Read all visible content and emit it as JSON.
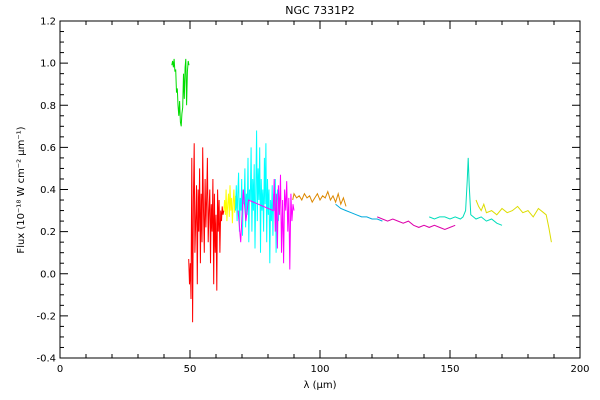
{
  "chart_data": {
    "type": "line",
    "title": "NGC 7331P2",
    "xlabel": "λ (μm)",
    "ylabel": "Flux (10⁻¹⁸ W cm⁻² μm⁻¹)",
    "xlim": [
      0,
      200
    ],
    "ylim": [
      -0.4,
      1.2
    ],
    "x_ticks": [
      0,
      50,
      100,
      150,
      200
    ],
    "y_ticks": [
      -0.4,
      -0.2,
      0.0,
      0.2,
      0.4,
      0.6,
      0.8,
      1.0,
      1.2
    ],
    "x_tick_labels": [
      "0",
      "50",
      "100",
      "150",
      "200"
    ],
    "y_tick_labels": [
      "-0.4",
      "-0.2",
      "0.0",
      "0.2",
      "0.4",
      "0.6",
      "0.8",
      "1.0",
      "1.2"
    ],
    "grid": false,
    "series": [
      {
        "color": "#00dd00",
        "x": [
          43.0,
          43.3,
          43.6,
          43.9,
          44.2,
          44.5,
          44.8,
          45.1,
          45.4,
          45.7,
          46.0,
          46.3,
          46.6,
          46.9,
          47.2,
          47.5,
          47.8,
          48.1,
          48.4,
          48.7,
          49.0,
          49.3,
          49.6
        ],
        "y": [
          0.99,
          1.01,
          0.98,
          1.02,
          0.96,
          0.97,
          0.86,
          0.88,
          0.8,
          0.75,
          0.82,
          0.72,
          0.7,
          0.76,
          0.79,
          0.95,
          0.83,
          0.98,
          1.02,
          0.8,
          0.96,
          1.01,
          0.99
        ]
      },
      {
        "color": "#ff0000",
        "x": [
          49.5,
          49.8,
          50.1,
          50.4,
          50.7,
          51.0,
          51.3,
          51.6,
          51.9,
          52.2,
          52.5,
          52.8,
          53.1,
          53.4,
          53.7,
          54.0,
          54.3,
          54.6,
          54.9,
          55.2,
          55.5,
          55.8,
          56.1,
          56.4,
          56.7,
          57.0,
          57.3,
          57.6,
          57.9,
          58.2,
          58.5,
          58.8,
          59.1,
          59.4,
          59.7,
          60.0,
          60.3,
          60.6,
          60.9,
          61.2,
          61.5,
          61.8,
          62.1,
          62.4,
          62.7,
          63.0
        ],
        "y": [
          0.07,
          -0.05,
          0.05,
          -0.12,
          0.55,
          -0.23,
          0.35,
          0.62,
          0.1,
          0.25,
          0.42,
          -0.05,
          0.4,
          0.2,
          0.5,
          0.05,
          0.38,
          0.15,
          0.6,
          0.3,
          0.1,
          0.45,
          0.22,
          0.35,
          0.55,
          0.15,
          0.3,
          0.4,
          0.05,
          0.33,
          0.2,
          0.45,
          -0.05,
          0.38,
          0.1,
          0.28,
          -0.08,
          0.4,
          0.2,
          0.35,
          0.1,
          0.3,
          0.25,
          0.32,
          0.28,
          0.3
        ]
      },
      {
        "color": "#ffff00",
        "x": [
          63.0,
          63.3,
          63.6,
          63.9,
          64.2,
          64.5,
          64.8,
          65.1,
          65.4,
          65.7,
          66.0,
          66.3,
          66.6,
          66.9,
          67.2,
          67.5,
          67.8,
          68.1
        ],
        "y": [
          0.3,
          0.35,
          0.28,
          0.4,
          0.25,
          0.33,
          0.38,
          0.27,
          0.42,
          0.3,
          0.36,
          0.24,
          0.34,
          0.4,
          0.29,
          0.37,
          0.31,
          0.35
        ]
      },
      {
        "color": "#00ffff",
        "x": [
          67.5,
          67.8,
          68.1,
          68.4,
          68.7,
          69.0,
          69.3,
          69.6,
          69.9,
          70.2,
          70.5,
          70.8,
          71.1,
          71.4,
          71.7,
          72.0,
          72.3,
          72.6,
          72.9,
          73.2,
          73.5,
          73.8,
          74.1,
          74.4,
          74.7,
          75.0,
          75.3,
          75.6,
          75.9,
          76.2,
          76.5,
          76.8,
          77.1,
          77.4,
          77.7,
          78.0,
          78.3,
          78.6,
          78.9,
          79.2,
          79.5,
          79.8,
          80.1,
          80.4,
          80.7,
          81.0,
          81.3,
          81.6,
          81.9,
          82.2,
          82.5,
          82.8,
          83.1,
          83.4,
          83.7,
          84.0,
          84.3
        ],
        "y": [
          0.3,
          0.42,
          0.25,
          0.38,
          0.48,
          0.2,
          0.36,
          0.3,
          0.45,
          0.18,
          0.4,
          0.33,
          0.5,
          0.22,
          0.38,
          0.28,
          0.55,
          0.15,
          0.4,
          0.35,
          0.6,
          0.2,
          0.45,
          0.3,
          0.52,
          0.12,
          0.4,
          0.68,
          0.25,
          0.5,
          0.35,
          0.6,
          0.1,
          0.45,
          0.3,
          0.4,
          0.2,
          0.55,
          0.33,
          0.62,
          0.15,
          0.45,
          0.28,
          0.4,
          0.05,
          0.35,
          0.25,
          0.42,
          0.18,
          0.38,
          0.3,
          0.45,
          0.1,
          0.35,
          0.4,
          0.25,
          0.33
        ]
      },
      {
        "color": "#ff00ff",
        "x": [
          68.5,
          69.5,
          70.5,
          71.5,
          72.5,
          82.0,
          82.4,
          82.8,
          83.2,
          83.6,
          84.0,
          84.4,
          84.8,
          85.2,
          85.6,
          86.0,
          86.4,
          86.8,
          87.2,
          87.6,
          88.0,
          88.4,
          88.8,
          89.2,
          89.6,
          90.0
        ],
        "y": [
          0.3,
          0.15,
          0.4,
          0.25,
          0.35,
          0.3,
          0.45,
          0.2,
          0.38,
          0.12,
          0.42,
          0.28,
          0.47,
          0.1,
          0.35,
          0.05,
          0.4,
          0.3,
          0.44,
          0.2,
          0.36,
          0.02,
          0.38,
          0.25,
          0.33,
          0.3
        ]
      },
      {
        "color": "#dd8800",
        "x": [
          89.5,
          90.0,
          91.0,
          92.0,
          93.0,
          94.0,
          95.0,
          96.0,
          97.0,
          98.0,
          99.0,
          100.0,
          101.0,
          102.0,
          103.0,
          104.0,
          105.0,
          106.0,
          107.0,
          108.0,
          109.0,
          110.0
        ],
        "y": [
          0.35,
          0.38,
          0.36,
          0.37,
          0.35,
          0.38,
          0.36,
          0.37,
          0.34,
          0.36,
          0.38,
          0.35,
          0.37,
          0.36,
          0.39,
          0.35,
          0.37,
          0.34,
          0.38,
          0.33,
          0.36,
          0.32
        ]
      },
      {
        "color": "#00aadd",
        "x": [
          106.0,
          108.0,
          110.0,
          112.0,
          114.0,
          116.0,
          118.0,
          120.0,
          122.0,
          124.0
        ],
        "y": [
          0.33,
          0.31,
          0.3,
          0.29,
          0.28,
          0.27,
          0.27,
          0.26,
          0.26,
          0.25
        ]
      },
      {
        "color": "#dd00aa",
        "x": [
          122.0,
          124.0,
          126.0,
          128.0,
          130.0,
          132.0,
          134.0,
          136.0,
          138.0,
          140.0,
          142.0,
          144.0,
          146.0,
          148.0,
          150.0,
          152.0
        ],
        "y": [
          0.27,
          0.26,
          0.25,
          0.26,
          0.25,
          0.24,
          0.25,
          0.23,
          0.22,
          0.23,
          0.22,
          0.23,
          0.22,
          0.21,
          0.22,
          0.23
        ]
      },
      {
        "color": "#00ddbb",
        "x": [
          142.0,
          144.0,
          146.0,
          148.0,
          150.0,
          152.0,
          154.0,
          155.0,
          156.0,
          156.6,
          157.0,
          157.4,
          158.0,
          159.0,
          160.0,
          162.0,
          164.0,
          166.0,
          168.0,
          170.0
        ],
        "y": [
          0.27,
          0.26,
          0.27,
          0.27,
          0.26,
          0.27,
          0.26,
          0.27,
          0.3,
          0.44,
          0.55,
          0.42,
          0.28,
          0.27,
          0.26,
          0.27,
          0.25,
          0.26,
          0.24,
          0.23
        ]
      },
      {
        "color": "#dddd00",
        "x": [
          160.0,
          161.0,
          162.0,
          163.0,
          164.0,
          166.0,
          168.0,
          170.0,
          172.0,
          174.0,
          176.0,
          178.0,
          180.0,
          182.0,
          184.0,
          186.0,
          187.0,
          188.0,
          189.0
        ],
        "y": [
          0.35,
          0.32,
          0.3,
          0.33,
          0.29,
          0.3,
          0.28,
          0.31,
          0.29,
          0.3,
          0.32,
          0.29,
          0.3,
          0.27,
          0.31,
          0.29,
          0.28,
          0.22,
          0.15
        ]
      }
    ]
  }
}
